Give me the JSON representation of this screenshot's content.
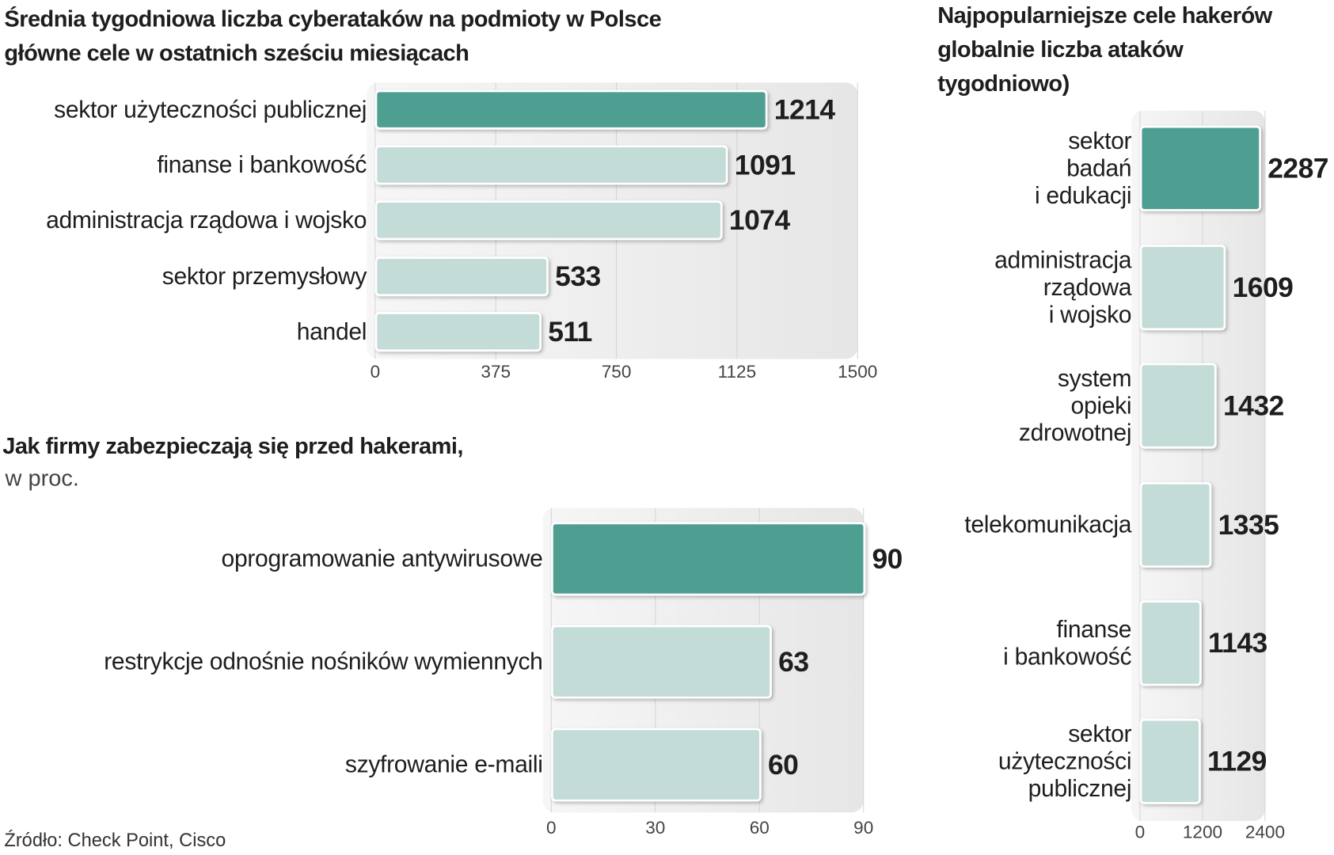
{
  "chart_data": [
    {
      "type": "bar",
      "orientation": "horizontal",
      "title": "Średnia tygodniowa liczba cyberataków na podmioty w Polsce",
      "subtitle": "główne cele w ostatnich sześciu miesiącach",
      "categories": [
        "sektor użyteczności publicznej",
        "finanse i bankowość",
        "administracja rządowa i wojsko",
        "sektor przemysłowy",
        "handel"
      ],
      "values": [
        1214,
        1091,
        1074,
        533,
        511
      ],
      "colors": [
        "#4f9e92",
        "#c3dcd7",
        "#c3dcd7",
        "#c3dcd7",
        "#c3dcd7"
      ],
      "xlim": [
        0,
        1500
      ],
      "xticks": [
        0,
        375,
        750,
        1125,
        1500
      ],
      "grid": true
    },
    {
      "type": "bar",
      "orientation": "horizontal",
      "title": "Jak firmy zabezpieczają się przed hakerami,",
      "subtitle": "w proc.",
      "categories": [
        "oprogramowanie antywirusowe",
        "restrykcje odnośnie nośników wymiennych",
        "szyfrowanie e-maili"
      ],
      "values": [
        90,
        63,
        60
      ],
      "colors": [
        "#4f9e92",
        "#c3dcd7",
        "#c3dcd7"
      ],
      "xlim": [
        0,
        90
      ],
      "xticks": [
        0,
        30,
        60,
        90
      ],
      "grid": true
    },
    {
      "type": "bar",
      "orientation": "horizontal",
      "title": "Najpopularniejsze cele hakerów\nglobalnie liczba ataków\ntygodniowo)",
      "categories": [
        "sektor\nbadań\ni edukacji",
        "administracja\nrządowa\ni wojsko",
        "system\nopieki\nzdrowotnej",
        "telekomunikacja",
        "finanse\ni bankowość",
        "sektor\nużyteczności\npublicznej"
      ],
      "values": [
        2287,
        1609,
        1432,
        1335,
        1143,
        1129
      ],
      "colors": [
        "#4f9e92",
        "#c3dcd7",
        "#c3dcd7",
        "#c3dcd7",
        "#c3dcd7",
        "#c3dcd7"
      ],
      "xlim": [
        0,
        2400
      ],
      "xticks": [
        0,
        1200,
        2400
      ],
      "grid": true
    }
  ],
  "source": "Źródło: Check Point, Cisco"
}
